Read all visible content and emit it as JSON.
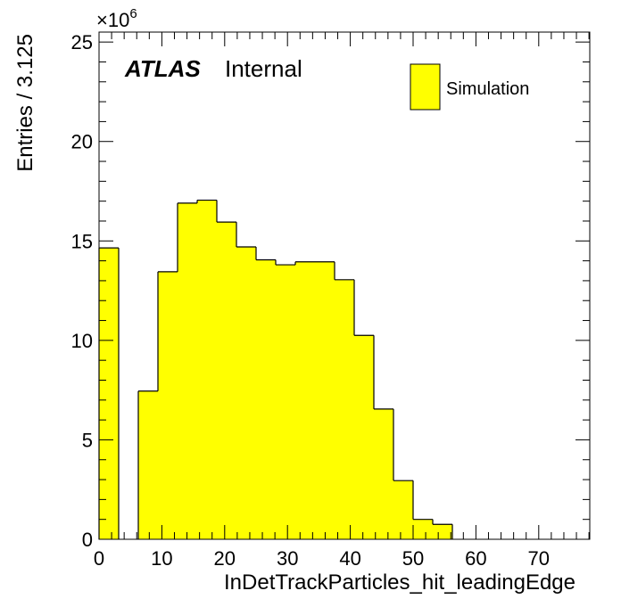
{
  "chart_data": {
    "type": "bar",
    "histogram": true,
    "x_bin_edges": [
      0,
      3.125,
      6.25,
      9.375,
      12.5,
      15.625,
      18.75,
      21.875,
      25,
      28.125,
      31.25,
      34.375,
      37.5,
      40.625,
      43.75,
      46.875,
      50,
      53.125,
      56.25,
      59.375,
      62.5,
      65.625,
      68.75,
      71.875,
      75,
      78.125
    ],
    "values": [
      14.65,
      0,
      7.45,
      13.45,
      16.9,
      17.05,
      15.95,
      14.7,
      14.05,
      13.8,
      13.95,
      13.95,
      13.05,
      10.25,
      6.55,
      2.95,
      1.0,
      0.75,
      0,
      0,
      0,
      0,
      0,
      0,
      0
    ],
    "xlabel": "InDetTrackParticles_hit_leadingEdge",
    "ylabel": "Entries / 3.125",
    "y_multiplier": "×10",
    "y_multiplier_exponent": "6",
    "xlim": [
      0,
      78.125
    ],
    "ylim": [
      0,
      25.5
    ],
    "x_ticks": [
      0,
      10,
      20,
      30,
      40,
      50,
      60,
      70
    ],
    "y_ticks": [
      0,
      5,
      10,
      15,
      20,
      25
    ],
    "grid": false,
    "legend_position": "top-right",
    "series": [
      {
        "name": "Simulation",
        "color": "#ffff00"
      }
    ]
  },
  "label": {
    "atlas": "ATLAS",
    "status": "Internal"
  },
  "colors": {
    "fill": "#ffff00",
    "line": "#000000",
    "background": "#ffffff"
  }
}
